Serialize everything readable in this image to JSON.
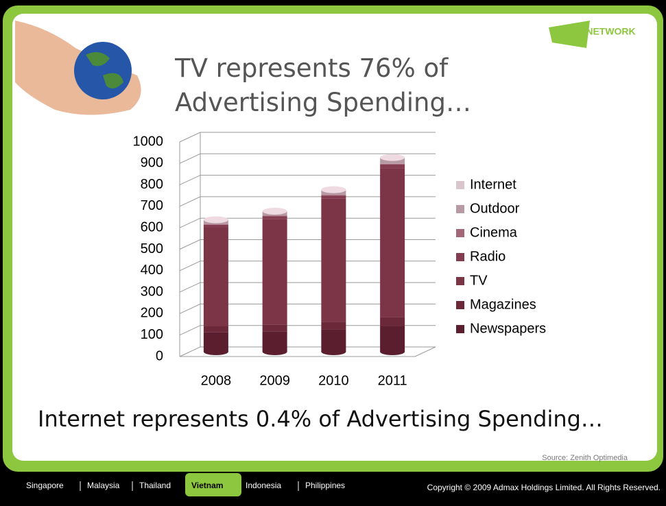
{
  "chart_data": {
    "type": "bar",
    "stacked": true,
    "title": "TV represents 76% of Advertising Spending…",
    "categories": [
      "2008",
      "2009",
      "2010",
      "2011"
    ],
    "series": [
      {
        "name": "Newspapers",
        "color": "#5a1e2f",
        "values": [
          90,
          95,
          105,
          120
        ]
      },
      {
        "name": "Magazines",
        "color": "#6b2839",
        "values": [
          30,
          32,
          35,
          40
        ]
      },
      {
        "name": "TV",
        "color": "#7c3447",
        "values": [
          460,
          492,
          573,
          695
        ]
      },
      {
        "name": "Radio",
        "color": "#843c50",
        "values": [
          12,
          13,
          15,
          18
        ]
      },
      {
        "name": "Cinema",
        "color": "#a46778",
        "values": [
          2,
          2,
          3,
          3
        ]
      },
      {
        "name": "Outdoor",
        "color": "#b79aa4",
        "values": [
          18,
          19,
          21,
          25
        ]
      },
      {
        "name": "Internet",
        "color": "#d9c6cd",
        "values": [
          3,
          2,
          3,
          4
        ]
      }
    ],
    "ylim": [
      0,
      1000
    ],
    "yticks": [
      0,
      100,
      200,
      300,
      400,
      500,
      600,
      700,
      800,
      900,
      1000
    ],
    "grid": true,
    "legend": "right"
  },
  "headline": "Internet represents 0.4% of Advertising Spending…",
  "source": "Source: Zenith Optimedia",
  "logo": "ADMAXNETWORK",
  "nav": [
    "Singapore",
    "Malaysia",
    "Thailand",
    "Vietnam",
    "Indonesia",
    "Philippines"
  ],
  "nav_active": 3,
  "copyright": "Copyright © 2009 Admax Holdings Limited. All Rights Reserved."
}
